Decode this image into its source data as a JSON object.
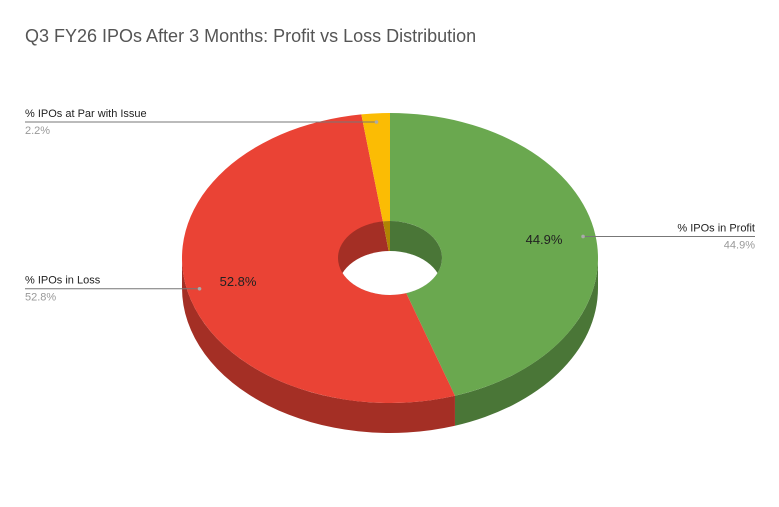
{
  "chart_data": {
    "type": "pie",
    "title": "Q3 FY26 IPOs After 3 Months: Profit vs Loss Distribution",
    "categories": [
      "% IPOs in Profit",
      "% IPOs in Loss",
      "% IPOs at Par with Issue"
    ],
    "values": [
      44.9,
      52.8,
      2.2
    ],
    "value_labels": [
      "44.9%",
      "52.8%",
      "2.2%"
    ],
    "colors": [
      "#6aa84f",
      "#ea4335",
      "#fbbc04"
    ],
    "donut": true,
    "three_d": true
  }
}
